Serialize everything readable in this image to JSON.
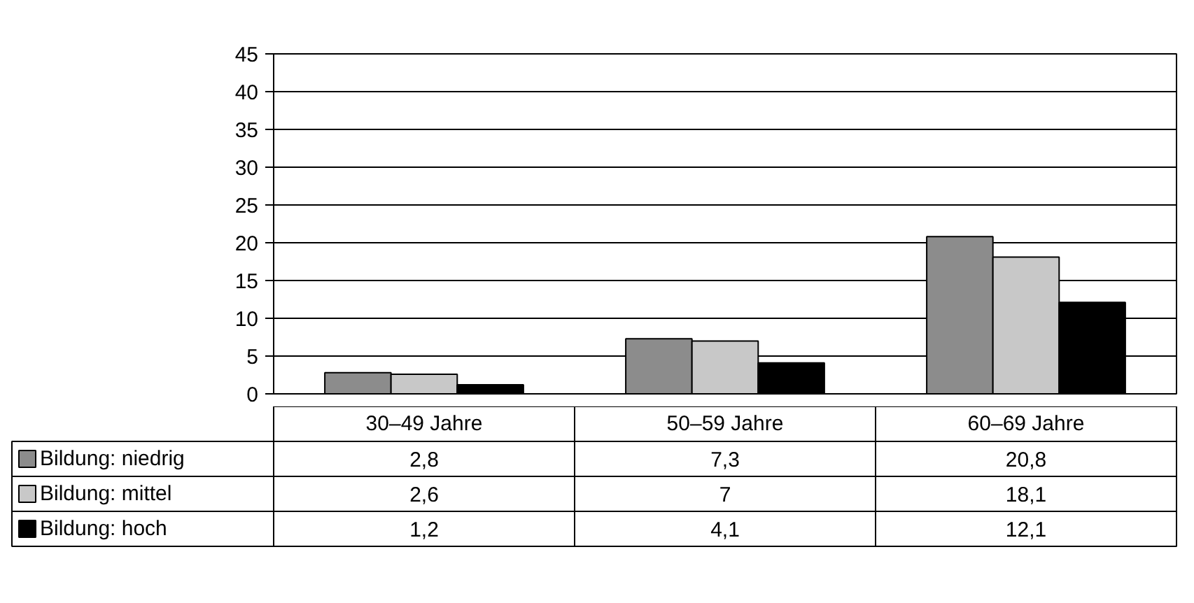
{
  "chart_data": {
    "type": "bar",
    "categories": [
      "30–49 Jahre",
      "50–59 Jahre",
      "60–69 Jahre"
    ],
    "series": [
      {
        "name": "Bildung: niedrig",
        "color": "#8c8c8c",
        "values": [
          2.8,
          7.3,
          20.8
        ]
      },
      {
        "name": "Bildung: mittel",
        "color": "#c8c8c8",
        "values": [
          2.6,
          7,
          18.1
        ]
      },
      {
        "name": "Bildung: hoch",
        "color": "#000000",
        "values": [
          1.2,
          4.1,
          12.1
        ]
      }
    ],
    "value_labels": [
      [
        "2,8",
        "7,3",
        "20,8"
      ],
      [
        "2,6",
        "7",
        "18,1"
      ],
      [
        "1,2",
        "4,1",
        "12,1"
      ]
    ],
    "ylim": [
      0,
      45
    ],
    "yticks": [
      0,
      5,
      10,
      15,
      20,
      25,
      30,
      35,
      40,
      45
    ],
    "grid": "y",
    "legend": "bottom"
  }
}
